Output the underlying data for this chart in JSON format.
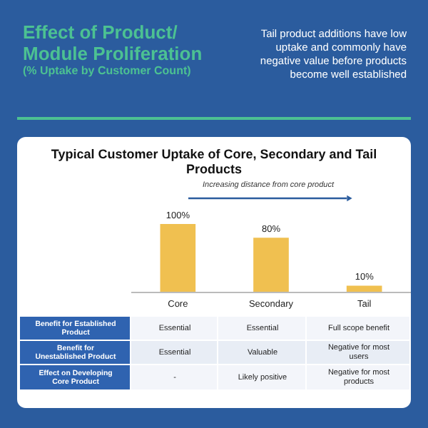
{
  "chart_data": {
    "type": "bar",
    "title": "Typical Customer Uptake of Core, Secondary and Tail Products",
    "categories": [
      "Core",
      "Secondary",
      "Tail"
    ],
    "values": [
      100,
      80,
      10
    ],
    "value_labels": [
      "100%",
      "80%",
      "10%"
    ],
    "color": "#f0c050",
    "annotations": [
      "Effect of Product/ Module Proliferation",
      "(% Uptake by Customer Count)",
      "Tail product additions have low uptake and commonly have negative value before products become well established",
      "Increasing distance from core product",
      "Benefit for Established Product",
      "Essential",
      "Essential",
      "Full scope benefit",
      "Benefit for Unestablished Product",
      "Essential",
      "Valuable",
      "Negative for most users",
      "Effect on Developing Core Product",
      "-",
      "Likely positive",
      "Negative for most products"
    ]
  }
}
